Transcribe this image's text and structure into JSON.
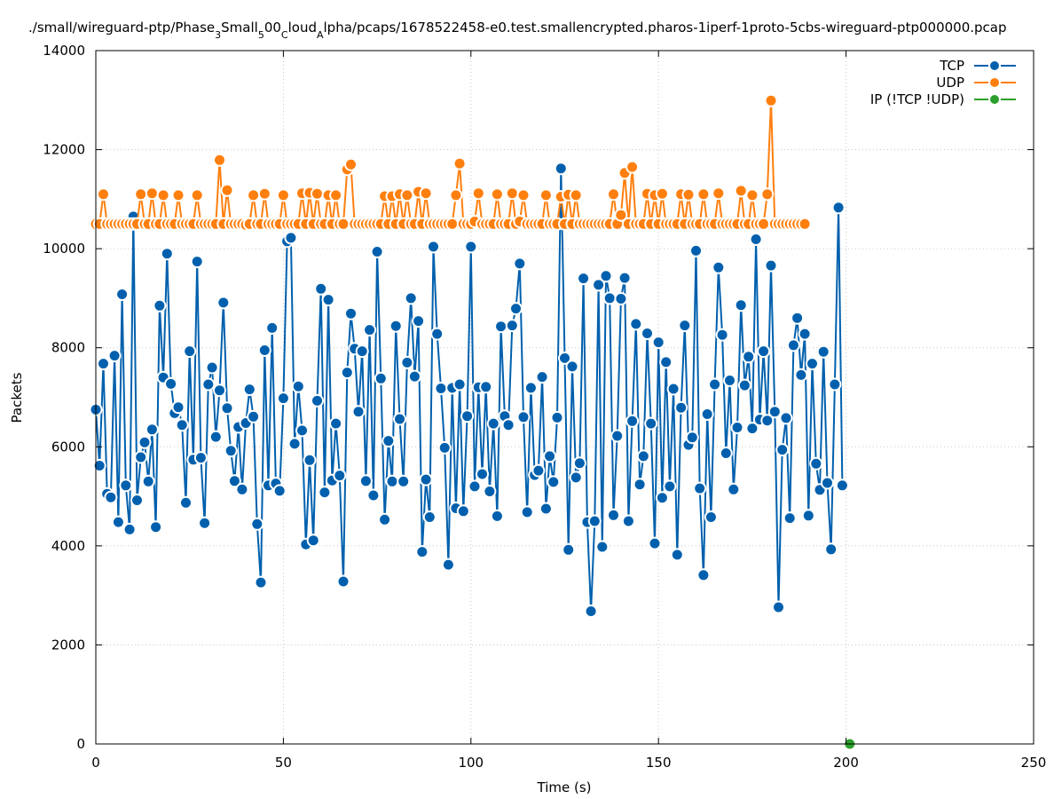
{
  "chart_data": {
    "type": "line",
    "title": "./small/wireguard-ptp/Phase_3_Small_500_Cloud_Alpha/pcaps/1678522458-e0.test.smallencrypted.pharos-1iperf-1proto-5cbs-wireguard-ptp000000.pcap",
    "title_parts": [
      {
        "text": "./small/wireguard-ptp/Phase",
        "sub": false
      },
      {
        "text": "3",
        "sub": true
      },
      {
        "text": "Small",
        "sub": false
      },
      {
        "text": "5",
        "sub": true
      },
      {
        "text": "00",
        "sub": false
      },
      {
        "text": "C",
        "sub": true
      },
      {
        "text": "loud",
        "sub": false
      },
      {
        "text": "A",
        "sub": true
      },
      {
        "text": "lpha/pcaps/1678522458-e0.test.smallencrypted.pharos-1iperf-1proto-5cbs-wireguard-ptp000000.pcap",
        "sub": false
      }
    ],
    "xlabel": "Time (s)",
    "ylabel": "Packets",
    "xlim": [
      0,
      250
    ],
    "ylim": [
      0,
      14000
    ],
    "xticks": [
      0,
      50,
      100,
      150,
      200,
      250
    ],
    "yticks": [
      0,
      2000,
      4000,
      6000,
      8000,
      10000,
      12000,
      14000
    ],
    "grid": true,
    "legend_position": "top-right",
    "series": [
      {
        "name": "TCP",
        "color": "#0060ad",
        "x_start": 0,
        "x_step": 1,
        "values": [
          6750,
          5620,
          7680,
          5050,
          4980,
          7840,
          4480,
          9080,
          5220,
          4330,
          10650,
          4920,
          5790,
          6090,
          5300,
          6350,
          4380,
          8850,
          7400,
          9900,
          7270,
          6680,
          6800,
          6440,
          4870,
          7930,
          5740,
          9740,
          5780,
          4460,
          7260,
          7600,
          6200,
          7140,
          8910,
          6780,
          5920,
          5310,
          6400,
          5140,
          6480,
          7160,
          6610,
          4440,
          3260,
          7950,
          5220,
          8400,
          5260,
          5110,
          6980,
          10150,
          10220,
          6060,
          7220,
          6330,
          4030,
          5730,
          4110,
          6930,
          9190,
          5080,
          8970,
          5320,
          6470,
          5420,
          3280,
          7500,
          8690,
          7980,
          6710,
          7930,
          5310,
          8360,
          5020,
          9940,
          7380,
          4530,
          6120,
          5300,
          8440,
          6560,
          5300,
          7700,
          9000,
          7420,
          8540,
          3880,
          5340,
          4580,
          10040,
          8280,
          7180,
          5980,
          3620,
          7190,
          4760,
          7260,
          4700,
          6620,
          10040,
          5200,
          7200,
          5450,
          7210,
          5100,
          6470,
          4600,
          8430,
          6620,
          6440,
          8450,
          8790,
          9700,
          6600,
          4680,
          7190,
          5430,
          5520,
          7410,
          4750,
          5810,
          5290,
          6590,
          11620,
          7790,
          3920,
          7620,
          5380,
          5670,
          9400,
          4480,
          2680,
          4500,
          9270,
          3980,
          9450,
          9000,
          4620,
          6220,
          8990,
          9410,
          4500,
          6520,
          8480,
          5240,
          5810,
          8290,
          6470,
          4050,
          8110,
          4970,
          7710,
          5200,
          7170,
          3820,
          6790,
          8450,
          6040,
          6190,
          9960,
          5160,
          3410,
          6660,
          4580,
          7260,
          9620,
          8260,
          5870,
          7340,
          5140,
          6390,
          8860,
          7240,
          7820,
          6370,
          10190,
          6550,
          7930,
          6530,
          9660,
          6710,
          2760,
          5940,
          6580,
          4560,
          8050,
          8600,
          7450,
          8280,
          4610,
          7680,
          5660,
          5130,
          7920,
          5270,
          3930,
          7260,
          10830,
          5220
        ]
      },
      {
        "name": "UDP",
        "color": "#ff7f0e",
        "x_start": 0,
        "x_step": 1,
        "values": [
          10500,
          10500,
          11100,
          10500,
          10500,
          10500,
          10500,
          10500,
          10500,
          10500,
          10500,
          10500,
          11100,
          10500,
          10500,
          11120,
          10500,
          10500,
          11080,
          10500,
          10500,
          10500,
          11080,
          10500,
          10500,
          10500,
          10500,
          11080,
          10500,
          10500,
          10500,
          10500,
          10500,
          11790,
          10500,
          11180,
          10500,
          10500,
          10500,
          10500,
          10480,
          10500,
          11080,
          10500,
          10500,
          11110,
          10500,
          10500,
          10500,
          10500,
          11080,
          10500,
          10500,
          10500,
          10500,
          11120,
          10500,
          11130,
          10500,
          11110,
          10500,
          10500,
          11080,
          10500,
          11080,
          10500,
          10500,
          11600,
          11700,
          10500,
          10500,
          10500,
          10500,
          10500,
          10500,
          10500,
          10500,
          11060,
          10500,
          11060,
          10500,
          11100,
          10500,
          11080,
          10500,
          10500,
          11150,
          10500,
          11120,
          10500,
          10500,
          10500,
          10500,
          10500,
          10500,
          10500,
          11080,
          11720,
          10500,
          10500,
          10500,
          10550,
          11120,
          10500,
          10500,
          10500,
          10500,
          11100,
          10500,
          10500,
          10500,
          11120,
          10500,
          10550,
          11080,
          10500,
          10500,
          10500,
          10500,
          10500,
          11080,
          10500,
          10500,
          10500,
          11050,
          10500,
          11090,
          10500,
          11080,
          10500,
          10500,
          10500,
          10500,
          10500,
          10500,
          10500,
          10500,
          10500,
          11100,
          10500,
          10680,
          11530,
          10500,
          11650,
          10500,
          10500,
          10500,
          11110,
          10500,
          11080,
          10500,
          11110,
          10500,
          10500,
          10500,
          10500,
          11100,
          10500,
          11090,
          10500,
          10500,
          10500,
          11100,
          10500,
          10500,
          10500,
          11120,
          10500,
          10500,
          10500,
          10500,
          10500,
          11170,
          10500,
          10500,
          11080,
          10500,
          10500,
          10500,
          11100,
          12990,
          10500,
          10500,
          10500,
          10500,
          10500,
          10500,
          10500,
          10500,
          10500
        ]
      },
      {
        "name": "IP (!TCP  !UDP)",
        "color": "#2ca02c",
        "x_start": 201,
        "x_step": 1,
        "values": [
          0
        ]
      }
    ]
  }
}
